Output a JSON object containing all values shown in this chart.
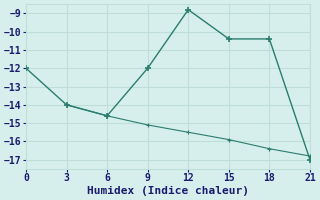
{
  "line1_x": [
    0,
    3,
    6,
    9,
    12,
    15,
    18,
    21
  ],
  "line1_y": [
    -12,
    -14,
    -14.6,
    -12,
    -8.8,
    -10.4,
    -10.4,
    -17
  ],
  "line2_x": [
    3,
    6,
    9,
    12,
    15,
    18,
    21
  ],
  "line2_y": [
    -14.0,
    -14.6,
    -15.1,
    -15.5,
    -15.9,
    -16.4,
    -16.8
  ],
  "color": "#2a7d6e",
  "bg_color": "#d6efec",
  "grid_color": "#c0ddd9",
  "xlabel": "Humidex (Indice chaleur)",
  "xlim": [
    0,
    21
  ],
  "ylim": [
    -17.5,
    -8.5
  ],
  "xticks": [
    0,
    3,
    6,
    9,
    12,
    15,
    18,
    21
  ],
  "yticks": [
    -9,
    -10,
    -11,
    -12,
    -13,
    -14,
    -15,
    -16,
    -17
  ],
  "tick_fontsize": 7,
  "xlabel_fontsize": 8
}
